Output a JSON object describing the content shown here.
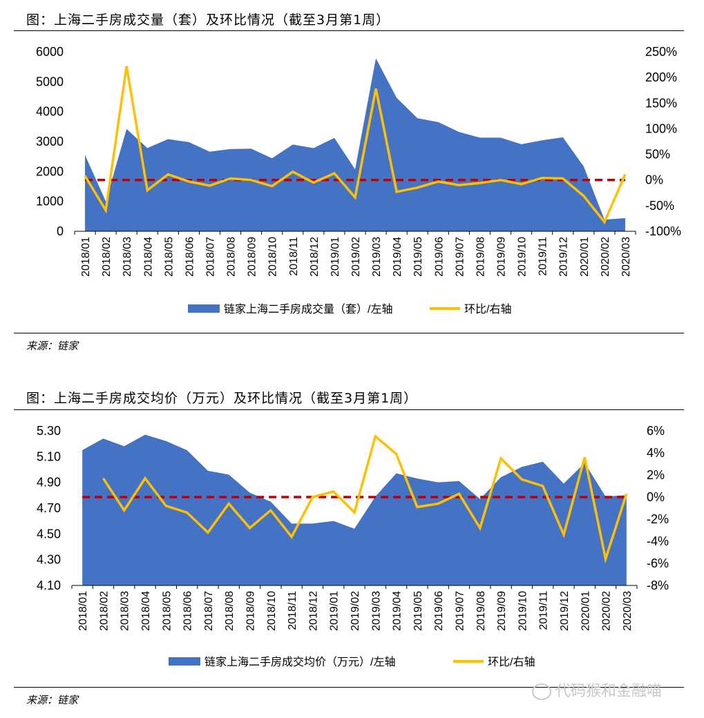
{
  "charts": [
    {
      "title": "图：上海二手房成交量（套）及环比情况（截至3月第1周）",
      "source": "来源：链家",
      "chart_data": {
        "type": "area",
        "categories": [
          "2018/01",
          "2018/02",
          "2018/03",
          "2018/04",
          "2018/05",
          "2018/06",
          "2018/07",
          "2018/08",
          "2018/09",
          "2018/10",
          "2018/11",
          "2018/12",
          "2019/01",
          "2019/02",
          "2019/03",
          "2019/04",
          "2019/05",
          "2019/06",
          "2019/07",
          "2019/08",
          "2019/09",
          "2019/10",
          "2019/11",
          "2019/12",
          "2020/01",
          "2020/02",
          "2020/03"
        ],
        "series": [
          {
            "name": "链家上海二手房成交量（套）/左轴",
            "type": "area",
            "axis": "left",
            "color": "#4472C4",
            "values": [
              2550,
              1000,
              3420,
              2780,
              3080,
              2980,
              2660,
              2750,
              2760,
              2440,
              2900,
              2780,
              3120,
              2070,
              5780,
              4460,
              3780,
              3650,
              3320,
              3130,
              3130,
              2910,
              3040,
              3140,
              2170,
              390,
              440
            ]
          },
          {
            "name": "环比/右轴",
            "type": "line",
            "axis": "right",
            "color": "#FFC000",
            "values": [
              8,
              -59,
              222,
              -20,
              11,
              -3,
              -11,
              3,
              0,
              -12,
              16,
              -5,
              13,
              -34,
              178,
              -23,
              -15,
              -3,
              -10,
              -6,
              0,
              -8,
              4,
              3,
              -31,
              -82,
              11
            ]
          }
        ],
        "reference_line": {
          "axis": "right",
          "value": 0,
          "color": "#C00000"
        },
        "yleft": {
          "ylim": [
            0,
            6000
          ],
          "ticks": [
            "0",
            "1000",
            "2000",
            "3000",
            "4000",
            "5000",
            "6000"
          ]
        },
        "yright": {
          "ylim": [
            -100,
            250
          ],
          "ticks": [
            "-100%",
            "-50%",
            "0%",
            "50%",
            "100%",
            "150%",
            "200%",
            "250%"
          ]
        },
        "legend": [
          "链家上海二手房成交量（套）/左轴",
          "环比/右轴"
        ]
      }
    },
    {
      "title": "图：上海二手房成交均价（万元）及环比情况（截至3月第1周）",
      "source": "来源：链家",
      "chart_data": {
        "type": "area",
        "categories": [
          "2018/01",
          "2018/02",
          "2018/03",
          "2018/04",
          "2018/05",
          "2018/06",
          "2018/07",
          "2018/08",
          "2018/09",
          "2018/10",
          "2018/11",
          "2018/12",
          "2019/01",
          "2019/02",
          "2019/03",
          "2019/04",
          "2019/05",
          "2019/06",
          "2019/07",
          "2019/08",
          "2019/09",
          "2019/10",
          "2019/11",
          "2019/12",
          "2020/01",
          "2020/02",
          "2020/03"
        ],
        "series": [
          {
            "name": "链家上海二手房成交均价（万元）/左轴",
            "type": "area",
            "axis": "left",
            "color": "#4472C4",
            "values": [
              5.15,
              5.24,
              5.18,
              5.27,
              5.22,
              5.15,
              4.99,
              4.96,
              4.82,
              4.75,
              4.58,
              4.58,
              4.6,
              4.54,
              4.79,
              4.97,
              4.93,
              4.9,
              4.91,
              4.77,
              4.94,
              5.02,
              5.06,
              4.89,
              5.05,
              4.79,
              4.8
            ]
          },
          {
            "name": "环比/右轴",
            "type": "line",
            "axis": "right",
            "color": "#FFC000",
            "values": [
              null,
              1.7,
              -1.2,
              1.7,
              -0.8,
              -1.4,
              -3.2,
              -0.6,
              -2.8,
              -1.2,
              -3.6,
              0,
              0.5,
              -1.4,
              5.5,
              3.9,
              -0.9,
              -0.6,
              0.3,
              -2.8,
              3.5,
              1.6,
              1.0,
              -3.4,
              3.6,
              -5.6,
              0.3
            ]
          }
        ],
        "reference_line": {
          "axis": "right",
          "value": 0,
          "color": "#C00000"
        },
        "yleft": {
          "ylim": [
            4.1,
            5.3
          ],
          "ticks": [
            "4.10",
            "4.30",
            "4.50",
            "4.70",
            "4.90",
            "5.10",
            "5.30"
          ]
        },
        "yright": {
          "ylim": [
            -8,
            6
          ],
          "ticks": [
            "-8%",
            "-6%",
            "-4%",
            "-2%",
            "0%",
            "2%",
            "4%",
            "6%"
          ]
        },
        "legend": [
          "链家上海二手房成交均价（万元）/左轴",
          "环比/右轴"
        ]
      }
    }
  ],
  "watermark": "代码猴和金融喵"
}
